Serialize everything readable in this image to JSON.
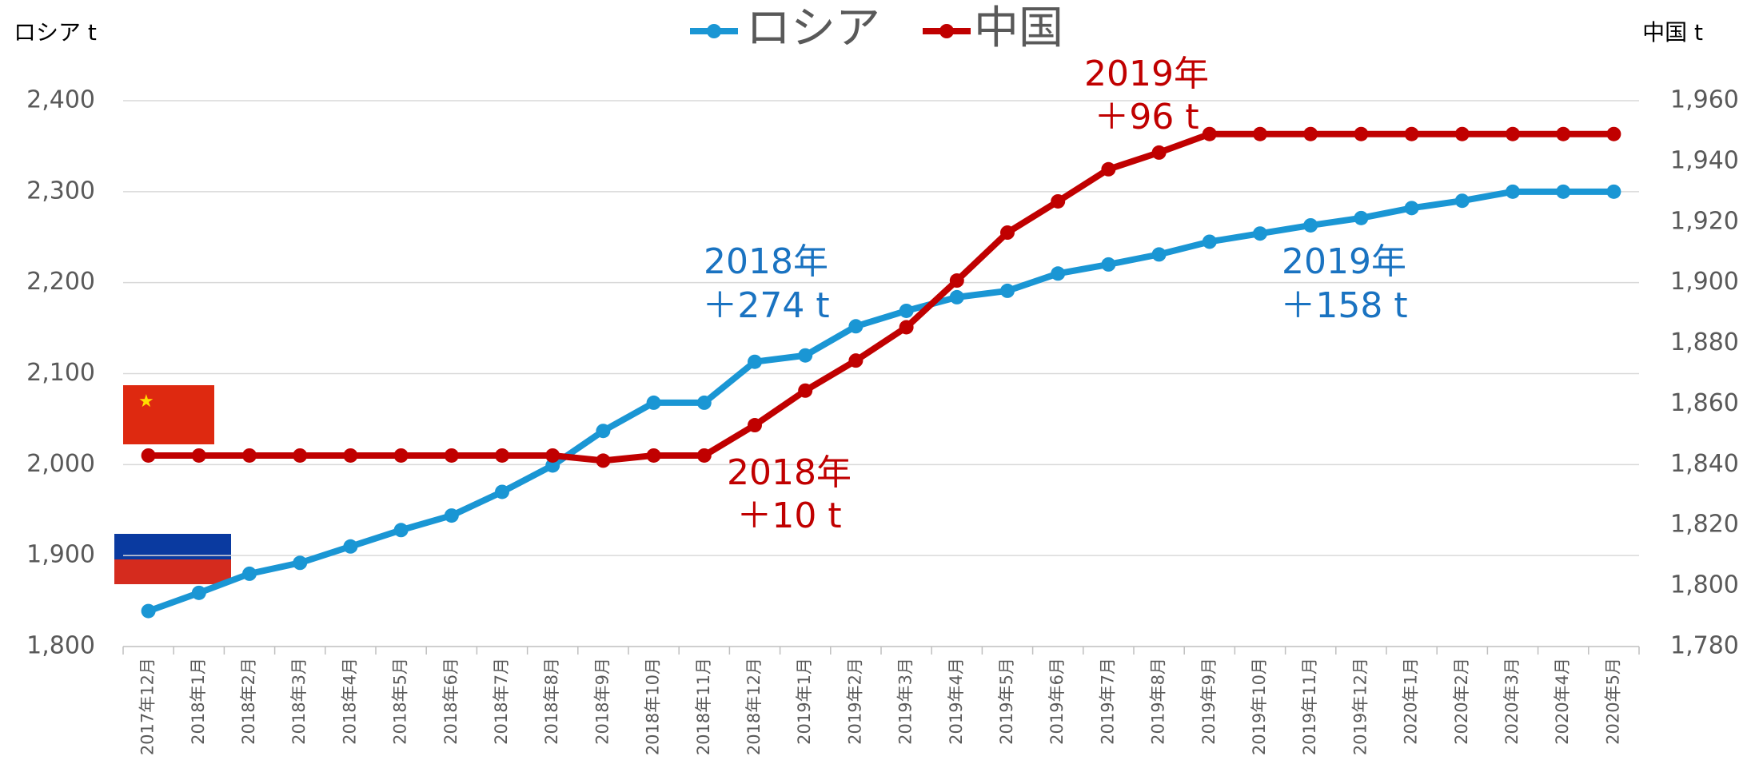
{
  "chart_data": {
    "type": "line",
    "legend": [
      "ロシア",
      "中国"
    ],
    "y_title": "ロシア t",
    "y2_title": "中国 t",
    "categories": [
      "2017年12月",
      "2018年1月",
      "2018年2月",
      "2018年3月",
      "2018年4月",
      "2018年5月",
      "2018年6月",
      "2018年7月",
      "2018年8月",
      "2018年9月",
      "2018年10月",
      "2018年11月",
      "2018年12月",
      "2019年1月",
      "2019年2月",
      "2019年3月",
      "2019年4月",
      "2019年5月",
      "2019年6月",
      "2019年7月",
      "2019年8月",
      "2019年9月",
      "2019年10月",
      "2019年11月",
      "2019年12月",
      "2020年1月",
      "2020年2月",
      "2020年3月",
      "2020年4月",
      "2020年5月"
    ],
    "series": [
      {
        "name": "ロシア",
        "color": "#1a96d4",
        "axis": "y",
        "values": [
          1839,
          1859,
          1880,
          1892,
          1910,
          1928,
          1944,
          1970,
          1999,
          2037,
          2068,
          2068,
          2113,
          2120,
          2152,
          2169,
          2184,
          2191,
          2210,
          2220,
          2231,
          2245,
          2254,
          2263,
          2271,
          2282,
          2290,
          2300,
          2300,
          2300
        ]
      },
      {
        "name": "中国",
        "color": "#c00000",
        "axis": "y2",
        "values": [
          1843,
          1843,
          1843,
          1843,
          1843,
          1843,
          1843,
          1843,
          1843,
          1841.3,
          1843,
          1843,
          1853,
          1864.4,
          1874.3,
          1885.3,
          1900.7,
          1916.5,
          1926.8,
          1937.4,
          1942.9,
          1949,
          1949,
          1949,
          1949,
          1949,
          1949,
          1949,
          1949,
          1949
        ]
      }
    ],
    "ylim": [
      1800,
      2400
    ],
    "yticks": [
      {
        "value": 1800,
        "label": "1,800"
      },
      {
        "value": 1900,
        "label": "1,900"
      },
      {
        "value": 2000,
        "label": "2,000"
      },
      {
        "value": 2100,
        "label": "2,100"
      },
      {
        "value": 2200,
        "label": "2,200"
      },
      {
        "value": 2300,
        "label": "2,300"
      },
      {
        "value": 2400,
        "label": "2,400"
      }
    ],
    "y2lim": [
      1780,
      1960
    ],
    "y2ticks": [
      {
        "value": 1780,
        "label": "1,780"
      },
      {
        "value": 1800,
        "label": "1,800"
      },
      {
        "value": 1820,
        "label": "1,820"
      },
      {
        "value": 1840,
        "label": "1,840"
      },
      {
        "value": 1860,
        "label": "1,860"
      },
      {
        "value": 1880,
        "label": "1,880"
      },
      {
        "value": 1900,
        "label": "1,900"
      },
      {
        "value": 1920,
        "label": "1,920"
      },
      {
        "value": 1940,
        "label": "1,940"
      },
      {
        "value": 1960,
        "label": "1,960"
      }
    ],
    "grid": true,
    "annotations": [
      {
        "text": [
          "2018年",
          "＋274 t"
        ],
        "color": "#1a73c1"
      },
      {
        "text": [
          "2019年",
          "＋158 t"
        ],
        "color": "#1a73c1"
      },
      {
        "text": [
          "2018年",
          "＋10 t"
        ],
        "color": "#c00000"
      },
      {
        "text": [
          "2019年",
          "＋96 t"
        ],
        "color": "#c00000"
      }
    ]
  }
}
